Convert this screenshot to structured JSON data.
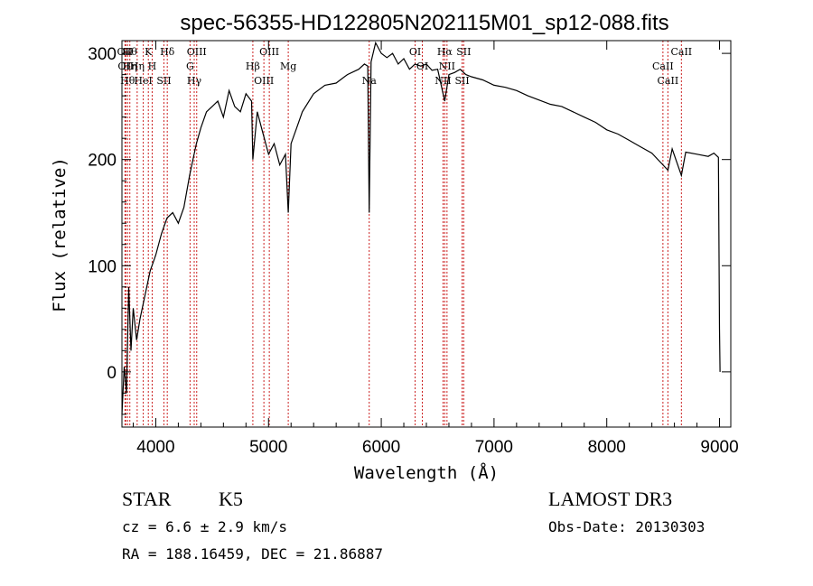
{
  "chart_data": {
    "type": "line",
    "title": "spec-56355-HD122805N202115M01_sp12-088.fits",
    "xlabel": "Wavelength (Å)",
    "ylabel": "Flux (relative)",
    "xlim": [
      3700,
      9100
    ],
    "ylim": [
      -52,
      312
    ],
    "xticks": [
      4000,
      5000,
      6000,
      7000,
      8000,
      9000
    ],
    "yticks": [
      0,
      100,
      200,
      300
    ],
    "series": [
      {
        "name": "flux",
        "x": [
          3700,
          3720,
          3740,
          3760,
          3780,
          3800,
          3830,
          3860,
          3900,
          3950,
          4000,
          4050,
          4100,
          4150,
          4200,
          4250,
          4300,
          4330,
          4360,
          4400,
          4450,
          4500,
          4550,
          4600,
          4650,
          4700,
          4750,
          4800,
          4850,
          4861,
          4900,
          4950,
          5000,
          5050,
          5100,
          5150,
          5175,
          5200,
          5250,
          5300,
          5400,
          5500,
          5600,
          5700,
          5800,
          5850,
          5880,
          5893,
          5910,
          5950,
          6000,
          6050,
          6100,
          6150,
          6200,
          6250,
          6300,
          6350,
          6400,
          6450,
          6500,
          6563,
          6600,
          6650,
          6700,
          6750,
          6800,
          6900,
          7000,
          7100,
          7200,
          7300,
          7400,
          7500,
          7600,
          7700,
          7800,
          7900,
          8000,
          8100,
          8200,
          8300,
          8400,
          8498,
          8542,
          8580,
          8662,
          8700,
          8800,
          8900,
          8950,
          8990,
          9000,
          9005
        ],
        "values": [
          -40,
          5,
          -20,
          80,
          20,
          60,
          30,
          50,
          70,
          95,
          110,
          130,
          145,
          150,
          140,
          155,
          185,
          200,
          215,
          230,
          245,
          250,
          255,
          240,
          265,
          250,
          245,
          262,
          255,
          200,
          245,
          225,
          205,
          215,
          195,
          205,
          150,
          215,
          230,
          245,
          262,
          270,
          272,
          280,
          285,
          290,
          288,
          150,
          292,
          310,
          300,
          296,
          300,
          290,
          295,
          285,
          290,
          288,
          290,
          284,
          285,
          255,
          280,
          282,
          285,
          280,
          278,
          275,
          270,
          268,
          265,
          260,
          256,
          252,
          250,
          245,
          240,
          235,
          228,
          224,
          218,
          212,
          206,
          195,
          190,
          210,
          185,
          207,
          205,
          203,
          206,
          202,
          40,
          0
        ]
      }
    ],
    "lines": [
      {
        "x": 3727,
        "labels": [
          "OII"
        ]
      },
      {
        "x": 3734,
        "labels": [
          "OII"
        ]
      },
      {
        "x": 3750,
        "labels": [
          "Hθ"
        ]
      },
      {
        "x": 3770,
        "labels": [
          "Hθ",
          "Hη"
        ]
      },
      {
        "x": 3835,
        "labels": [
          "Hη"
        ]
      },
      {
        "x": 3889,
        "labels": [
          "HeI"
        ]
      },
      {
        "x": 3934,
        "labels": [
          "K"
        ]
      },
      {
        "x": 3968,
        "labels": [
          "H"
        ]
      },
      {
        "x": 4072,
        "labels": [
          "SII"
        ]
      },
      {
        "x": 4102,
        "labels": [
          "Hδ"
        ]
      },
      {
        "x": 4304,
        "labels": [
          "G"
        ]
      },
      {
        "x": 4341,
        "labels": [
          "Hγ"
        ]
      },
      {
        "x": 4363,
        "labels": [
          "OIII"
        ]
      },
      {
        "x": 4861,
        "labels": [
          "Hβ"
        ]
      },
      {
        "x": 4959,
        "labels": [
          "OIII"
        ]
      },
      {
        "x": 5007,
        "labels": [
          "OIII"
        ]
      },
      {
        "x": 5175,
        "labels": [
          "Mg"
        ]
      },
      {
        "x": 5893,
        "labels": [
          "Na"
        ]
      },
      {
        "x": 6300,
        "labels": [
          "OI"
        ]
      },
      {
        "x": 6364,
        "labels": [
          "OI"
        ]
      },
      {
        "x": 6548,
        "labels": [
          "NII"
        ]
      },
      {
        "x": 6563,
        "labels": [
          "Hα"
        ]
      },
      {
        "x": 6583,
        "labels": [
          "NII"
        ]
      },
      {
        "x": 6717,
        "labels": [
          "SII"
        ]
      },
      {
        "x": 6731,
        "labels": [
          "SII"
        ]
      },
      {
        "x": 8498,
        "labels": [
          "CaII"
        ]
      },
      {
        "x": 8542,
        "labels": [
          "CaII"
        ]
      },
      {
        "x": 8662,
        "labels": [
          "CaII"
        ]
      }
    ]
  },
  "info": {
    "object_class": "STAR",
    "subclass": "K5",
    "cz": "cz = 6.6 ± 2.9 km/s",
    "coords": "RA = 188.16459, DEC =  21.86887",
    "survey": "LAMOST DR3",
    "obs_date": "Obs-Date: 20130303"
  },
  "colors": {
    "spectrum": "#000000",
    "line_markers": "#cc2222",
    "axes": "#000000"
  }
}
